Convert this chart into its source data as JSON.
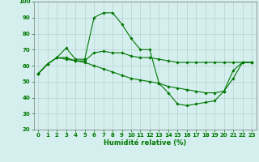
{
  "xlabel": "Humidité relative (%)",
  "background_color": "#d5efef",
  "grid_color": "#b0c8c8",
  "line_color": "#007700",
  "xlim": [
    -0.5,
    23.5
  ],
  "ylim": [
    20,
    100
  ],
  "yticks": [
    20,
    30,
    40,
    50,
    60,
    70,
    80,
    90,
    100
  ],
  "xticks": [
    0,
    1,
    2,
    3,
    4,
    5,
    6,
    7,
    8,
    9,
    10,
    11,
    12,
    13,
    14,
    15,
    16,
    17,
    18,
    19,
    20,
    21,
    22,
    23
  ],
  "series1_x": [
    0,
    1,
    2,
    3,
    4,
    5,
    6,
    7,
    8,
    9,
    10,
    11,
    12,
    13,
    14,
    15,
    16,
    17,
    18,
    19,
    20,
    21,
    22,
    23
  ],
  "series1_y": [
    55,
    61,
    65,
    71,
    64,
    64,
    90,
    93,
    93,
    86,
    77,
    70,
    70,
    49,
    43,
    36,
    35,
    36,
    37,
    38,
    44,
    57,
    62,
    62
  ],
  "series2_x": [
    0,
    1,
    2,
    3,
    4,
    5,
    6,
    7,
    8,
    9,
    10,
    11,
    12,
    13,
    14,
    15,
    16,
    17,
    18,
    19,
    20,
    21,
    22,
    23
  ],
  "series2_y": [
    55,
    61,
    65,
    65,
    63,
    63,
    68,
    69,
    68,
    68,
    66,
    65,
    65,
    64,
    63,
    62,
    62,
    62,
    62,
    62,
    62,
    62,
    62,
    62
  ],
  "series3_x": [
    0,
    1,
    2,
    3,
    4,
    5,
    6,
    7,
    8,
    9,
    10,
    11,
    12,
    13,
    14,
    15,
    16,
    17,
    18,
    19,
    20,
    21,
    22,
    23
  ],
  "series3_y": [
    55,
    61,
    65,
    64,
    63,
    62,
    60,
    58,
    56,
    54,
    52,
    51,
    50,
    49,
    47,
    46,
    45,
    44,
    43,
    43,
    44,
    52,
    62,
    62
  ],
  "tick_fontsize": 5,
  "xlabel_fontsize": 6,
  "linewidth": 0.8,
  "markersize": 1.8
}
